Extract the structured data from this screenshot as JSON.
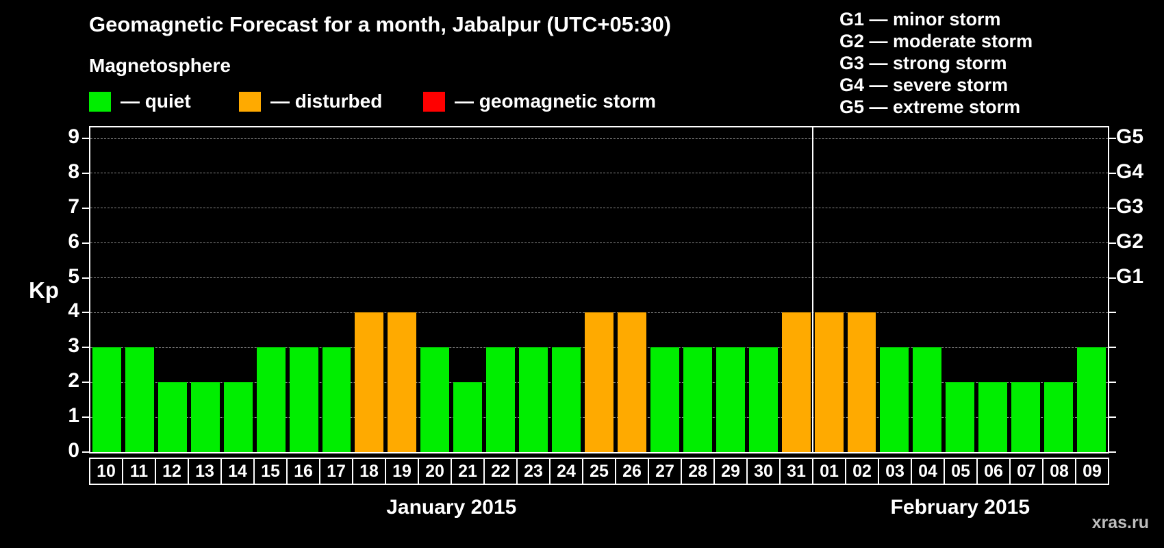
{
  "title": "Geomagnetic Forecast for a month, Jabalpur (UTC+05:30)",
  "legend": {
    "heading": "Magnetosphere",
    "items": [
      {
        "key": "quiet",
        "label": "— quiet",
        "color": "#00ee00"
      },
      {
        "key": "disturbed",
        "label": "— disturbed",
        "color": "#ffaa00"
      },
      {
        "key": "storm",
        "label": "— geomagnetic storm",
        "color": "#ff0000"
      }
    ]
  },
  "g_legend": [
    "G1 — minor storm",
    "G2 — moderate storm",
    "G3 — strong storm",
    "G4 — severe storm",
    "G5 — extreme storm"
  ],
  "watermark": "xras.ru",
  "chart_data": {
    "type": "bar",
    "title": "Geomagnetic Forecast for a month, Jabalpur (UTC+05:30)",
    "ylabel": "Kp",
    "ylim": [
      0,
      9
    ],
    "grid": "horizontal dashed lines at integer Kp values",
    "legend_position": "top-left",
    "y_ticks": [
      0,
      1,
      2,
      3,
      4,
      5,
      6,
      7,
      8,
      9
    ],
    "right_ticks": [
      {
        "label": "G1",
        "value": 5
      },
      {
        "label": "G2",
        "value": 6
      },
      {
        "label": "G3",
        "value": 7
      },
      {
        "label": "G4",
        "value": 8
      },
      {
        "label": "G5",
        "value": 9
      }
    ],
    "categories": [
      "10",
      "11",
      "12",
      "13",
      "14",
      "15",
      "16",
      "17",
      "18",
      "19",
      "20",
      "21",
      "22",
      "23",
      "24",
      "25",
      "26",
      "27",
      "28",
      "29",
      "30",
      "31",
      "01",
      "02",
      "03",
      "04",
      "05",
      "06",
      "07",
      "08",
      "09"
    ],
    "values": [
      3,
      3,
      2,
      2,
      2,
      3,
      3,
      3,
      4,
      4,
      3,
      2,
      3,
      3,
      3,
      4,
      4,
      3,
      3,
      3,
      3,
      4,
      4,
      4,
      3,
      3,
      2,
      2,
      2,
      2,
      3
    ],
    "months": [
      {
        "label": "January 2015",
        "start": 0,
        "count": 22
      },
      {
        "label": "February 2015",
        "start": 22,
        "count": 9
      }
    ],
    "colors": {
      "quiet": "#00ee00",
      "disturbed": "#ffaa00",
      "storm": "#ff0000"
    },
    "thresholds": {
      "disturbed_min": 4,
      "storm_min": 5
    }
  }
}
